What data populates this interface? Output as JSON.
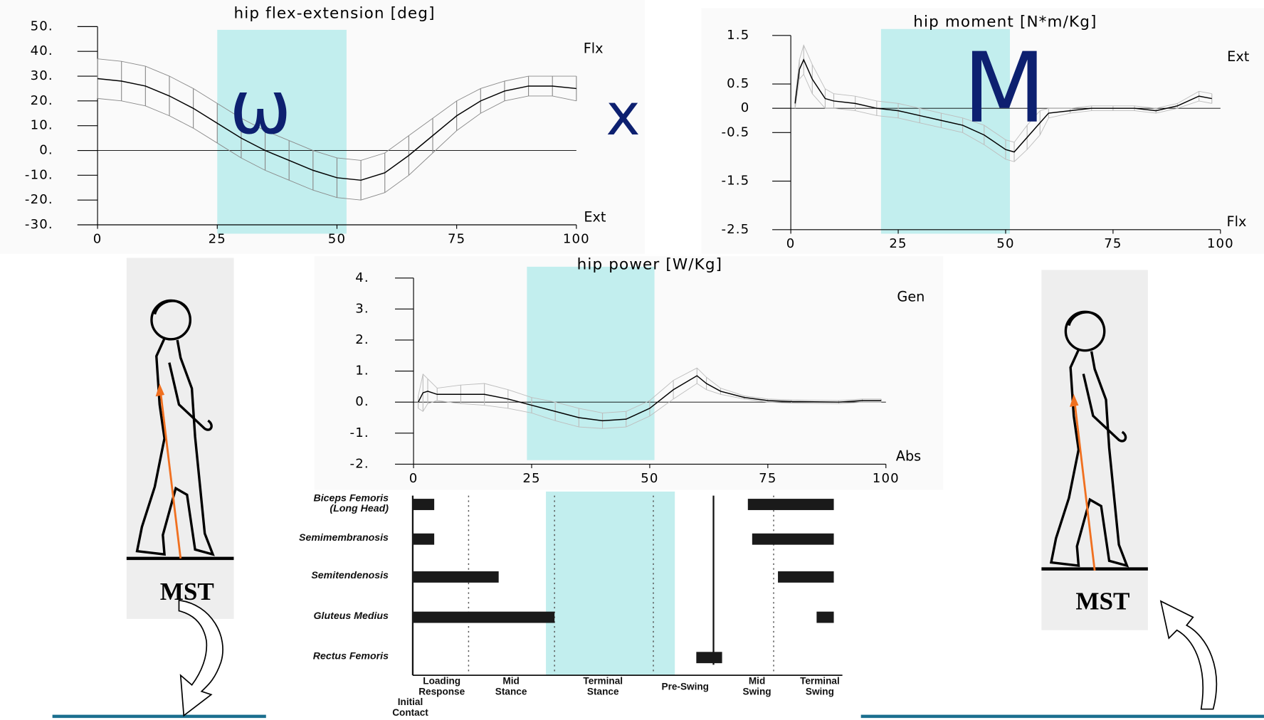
{
  "chart_data": [
    {
      "type": "line",
      "title": "hip flex-extension [deg]",
      "top_label": "Flx",
      "bottom_label": "Ext",
      "x": [
        0,
        5,
        10,
        15,
        20,
        25,
        30,
        35,
        40,
        45,
        50,
        55,
        60,
        65,
        70,
        75,
        80,
        85,
        90,
        95,
        100
      ],
      "values": [
        29,
        28,
        26,
        22,
        17,
        11,
        5,
        0,
        -4,
        -8,
        -11,
        -12,
        -9,
        -2,
        6,
        14,
        20,
        24,
        26,
        26,
        25
      ],
      "errors": [
        8,
        8,
        8,
        8,
        8,
        8,
        8,
        8,
        8,
        8,
        8,
        8,
        8,
        8,
        7,
        6,
        5,
        4,
        4,
        4,
        5
      ],
      "color": "#000000",
      "band_color": "#8a8a8a",
      "highlight": [
        25,
        52
      ],
      "highlight_color": "#c2eeee",
      "xlim": [
        0,
        100
      ],
      "ylim": [
        -30,
        50
      ],
      "xticks": [
        0,
        25,
        50,
        75,
        100
      ],
      "yticks": [
        {
          "value": 50,
          "label": "50."
        },
        {
          "value": 40,
          "label": "40."
        },
        {
          "value": 30,
          "label": "30."
        },
        {
          "value": 20,
          "label": "20."
        },
        {
          "value": 10,
          "label": "10."
        },
        {
          "value": 0,
          "label": "0."
        },
        {
          "value": -10,
          "label": "-10."
        },
        {
          "value": -20,
          "label": "-20."
        },
        {
          "value": -30,
          "label": "-30."
        }
      ]
    },
    {
      "type": "line",
      "title": "hip moment [N*m/Kg]",
      "top_label": "Ext",
      "bottom_label": "Flx",
      "x": [
        1,
        2,
        3,
        5,
        8,
        10,
        15,
        20,
        25,
        30,
        35,
        40,
        45,
        50,
        52,
        55,
        58,
        60,
        65,
        70,
        75,
        80,
        85,
        90,
        95,
        98
      ],
      "values": [
        0.1,
        0.8,
        1.0,
        0.6,
        0.2,
        0.15,
        0.1,
        0.0,
        -0.05,
        -0.15,
        -0.25,
        -0.35,
        -0.55,
        -0.85,
        -0.9,
        -0.6,
        -0.3,
        -0.1,
        -0.05,
        0,
        0,
        0,
        -0.05,
        0.05,
        0.25,
        0.2
      ],
      "errors": [
        0.1,
        0.2,
        0.3,
        0.3,
        0.2,
        0.15,
        0.15,
        0.15,
        0.15,
        0.15,
        0.15,
        0.15,
        0.2,
        0.2,
        0.2,
        0.25,
        0.25,
        0.1,
        0.05,
        0.05,
        0.05,
        0.05,
        0.05,
        0.05,
        0.1,
        0.1
      ],
      "color": "#000000",
      "band_color": "#bdbdbd",
      "highlight": [
        21,
        51
      ],
      "highlight_color": "#c2eeee",
      "xlim": [
        0,
        100
      ],
      "ylim": [
        -2.5,
        1.5
      ],
      "xticks": [
        0,
        25,
        50,
        75,
        100
      ],
      "yticks": [
        1.5,
        0.5,
        0,
        -0.5,
        -1.5,
        -2.5
      ]
    },
    {
      "type": "line",
      "title": "hip power [W/Kg]",
      "top_label": "Gen",
      "bottom_label": "Abs",
      "x": [
        1,
        2,
        3,
        5,
        10,
        15,
        20,
        25,
        30,
        35,
        40,
        45,
        50,
        55,
        60,
        62,
        65,
        70,
        75,
        80,
        90,
        95,
        99
      ],
      "values": [
        0,
        0.3,
        0.35,
        0.25,
        0.25,
        0.25,
        0.1,
        -0.1,
        -0.3,
        -0.5,
        -0.6,
        -0.55,
        -0.2,
        0.4,
        0.85,
        0.6,
        0.35,
        0.15,
        0.05,
        0.02,
        0,
        0.05,
        0.05
      ],
      "errors": [
        0.2,
        0.6,
        0.4,
        0.2,
        0.3,
        0.35,
        0.3,
        0.25,
        0.3,
        0.3,
        0.25,
        0.25,
        0.25,
        0.3,
        0.25,
        0.2,
        0.1,
        0.05,
        0.05,
        0.05,
        0.05,
        0.05,
        0.05
      ],
      "color": "#000000",
      "band_color": "#bdbdbd",
      "highlight": [
        24,
        51
      ],
      "highlight_color": "#c2eeee",
      "xlim": [
        0,
        100
      ],
      "ylim": [
        -2,
        4
      ],
      "xticks": [
        0,
        25,
        50,
        75,
        100
      ],
      "yticks": [
        {
          "value": 4,
          "label": "4."
        },
        {
          "value": 3,
          "label": "3."
        },
        {
          "value": 2,
          "label": "2."
        },
        {
          "value": 1,
          "label": "1."
        },
        {
          "value": 0,
          "label": "0."
        },
        {
          "value": -1,
          "label": "-1."
        },
        {
          "value": -2,
          "label": "-2."
        }
      ]
    },
    {
      "type": "gantt",
      "categories": [
        "Biceps Femoris\n(Long Head)",
        "Semimembranosis",
        "Semitendenosis",
        "Gluteus Medius",
        "Rectus Femoris"
      ],
      "ranges": [
        [
          [
            0,
            5
          ],
          [
            78,
            98
          ]
        ],
        [
          [
            0,
            5
          ],
          [
            79,
            98
          ]
        ],
        [
          [
            0,
            20
          ],
          [
            85,
            98
          ]
        ],
        [
          [
            0,
            33
          ],
          [
            94,
            98
          ]
        ],
        [
          [
            66,
            72
          ]
        ]
      ],
      "phases": [
        "Initial\nContact",
        "Loading\nResponse",
        "Mid\nStance",
        "Terminal\nStance",
        "Pre-Swing",
        "Mid\nSwing",
        "Terminal\nSwing"
      ],
      "boundaries": [
        13,
        33,
        56,
        84
      ],
      "toe_off": 70,
      "color": "#1a1a1a",
      "highlight": [
        31,
        61
      ],
      "highlight_color": "#c2eeee",
      "xlim": [
        0,
        100
      ]
    }
  ],
  "annotations": {
    "angular_velocity": "ω",
    "times": "x",
    "moment": "M"
  },
  "figure_labels": [
    "MST",
    "MST"
  ]
}
